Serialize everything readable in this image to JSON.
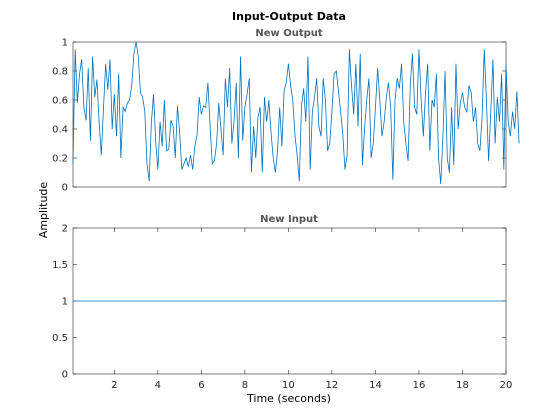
{
  "figure": {
    "title": "Input-Output Data",
    "ylabel": "Amplitude",
    "xlabel": "Time (seconds)"
  },
  "colors": {
    "series": "#0072bd",
    "axes": "#262626",
    "subtitle": "#555555"
  },
  "chart_data": [
    {
      "type": "line",
      "title": "New Output",
      "xlim": [
        0.1,
        20
      ],
      "ylim": [
        0,
        1
      ],
      "x_start": 0.1,
      "x_step": 0.1,
      "yticks": [
        0,
        0.2,
        0.4,
        0.6,
        0.8,
        1
      ],
      "ytick_labels": [
        "0",
        "0.2",
        "0.4",
        "0.6",
        "0.8",
        "1"
      ],
      "xticks": [],
      "grid": false,
      "series": [
        {
          "values": [
            0.16,
            0.95,
            0.58,
            0.78,
            0.88,
            0.55,
            0.46,
            0.82,
            0.32,
            0.9,
            0.62,
            0.74,
            0.45,
            0.22,
            0.54,
            0.85,
            0.67,
            0.88,
            0.4,
            0.64,
            0.35,
            0.78,
            0.2,
            0.55,
            0.52,
            0.58,
            0.6,
            0.7,
            0.92,
            1.0,
            0.9,
            0.65,
            0.62,
            0.52,
            0.16,
            0.04,
            0.44,
            0.64,
            0.32,
            0.12,
            0.45,
            0.28,
            0.6,
            0.25,
            0.26,
            0.46,
            0.42,
            0.2,
            0.56,
            0.38,
            0.12,
            0.16,
            0.2,
            0.14,
            0.22,
            0.12,
            0.28,
            0.36,
            0.62,
            0.5,
            0.56,
            0.55,
            0.72,
            0.42,
            0.16,
            0.18,
            0.3,
            0.58,
            0.4,
            0.22,
            0.75,
            0.55,
            0.82,
            0.3,
            0.45,
            0.72,
            0.2,
            0.9,
            0.32,
            0.55,
            0.64,
            0.75,
            0.1,
            0.42,
            0.2,
            0.48,
            0.55,
            0.1,
            0.62,
            0.45,
            0.6,
            0.38,
            0.2,
            0.1,
            0.25,
            0.55,
            0.28,
            0.66,
            0.72,
            0.85,
            0.7,
            0.6,
            0.36,
            0.22,
            0.04,
            0.56,
            0.68,
            0.45,
            0.9,
            0.12,
            0.52,
            0.62,
            0.75,
            0.42,
            0.35,
            0.75,
            0.6,
            0.25,
            0.3,
            0.52,
            0.78,
            0.8,
            0.66,
            0.52,
            0.36,
            0.12,
            0.22,
            0.95,
            0.7,
            0.5,
            0.85,
            0.42,
            0.92,
            0.15,
            0.4,
            0.6,
            0.75,
            0.2,
            0.3,
            0.55,
            0.82,
            0.6,
            0.35,
            0.45,
            0.62,
            0.72,
            0.55,
            0.05,
            0.6,
            0.75,
            0.68,
            0.85,
            0.45,
            0.3,
            0.18,
            0.7,
            0.92,
            0.55,
            0.5,
            0.95,
            0.6,
            0.35,
            0.65,
            0.85,
            0.25,
            0.6,
            0.55,
            0.78,
            0.2,
            0.02,
            0.35,
            0.8,
            0.2,
            0.1,
            0.55,
            0.15,
            0.85,
            0.4,
            0.58,
            0.65,
            0.55,
            0.52,
            0.7,
            0.65,
            0.45,
            0.55,
            0.3,
            0.25,
            0.48,
            0.95,
            0.6,
            0.18,
            0.52,
            0.88,
            0.3,
            0.62,
            0.45,
            0.78,
            0.12,
            0.85,
            0.45,
            0.35,
            0.52,
            0.4,
            0.66,
            0.3
          ]
        }
      ]
    },
    {
      "type": "line",
      "title": "New Input",
      "xlim": [
        0.1,
        20
      ],
      "ylim": [
        0,
        2
      ],
      "yticks": [
        0,
        0.5,
        1,
        1.5,
        2
      ],
      "ytick_labels": [
        "0",
        "0.5",
        "1",
        "1.5",
        "2"
      ],
      "xticks": [
        2,
        4,
        6,
        8,
        10,
        12,
        14,
        16,
        18,
        20
      ],
      "xtick_labels": [
        "2",
        "4",
        "6",
        "8",
        "10",
        "12",
        "14",
        "16",
        "18",
        "20"
      ],
      "grid": false,
      "series": [
        {
          "x": [
            0.1,
            20
          ],
          "values": [
            1,
            1
          ]
        }
      ]
    }
  ]
}
